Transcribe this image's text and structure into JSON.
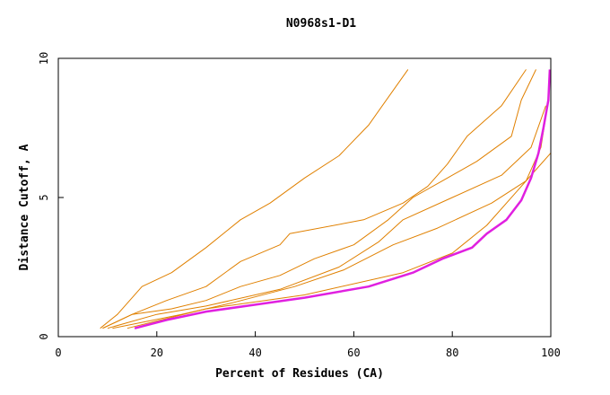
{
  "chart_data": {
    "type": "line",
    "title": "N0968s1-D1",
    "xlabel": "Percent of Residues (CA)",
    "ylabel": "Distance Cutoff, A",
    "xlim": [
      0,
      100
    ],
    "ylim": [
      0,
      10
    ],
    "x_ticks": [
      "0",
      "20",
      "40",
      "60",
      "80",
      "100"
    ],
    "y_ticks": [
      "0",
      "5",
      "10"
    ],
    "grid": false,
    "colors": {
      "background": "#ffffff",
      "frame": "#000000",
      "other_models": "#e08000",
      "highlight": "#e020e0"
    },
    "series": [
      {
        "highlight": false,
        "points": [
          [
            8.5,
            0.3
          ],
          [
            12,
            0.8
          ],
          [
            17,
            1.8
          ],
          [
            23,
            2.3
          ],
          [
            30,
            3.2
          ],
          [
            37,
            4.2
          ],
          [
            43,
            4.8
          ],
          [
            50,
            5.7
          ],
          [
            57,
            6.5
          ],
          [
            63,
            7.6
          ],
          [
            67,
            8.6
          ],
          [
            71,
            9.6
          ]
        ]
      },
      {
        "highlight": false,
        "points": [
          [
            9,
            0.3
          ],
          [
            15,
            0.8
          ],
          [
            22,
            1.3
          ],
          [
            30,
            1.8
          ],
          [
            37,
            2.7
          ],
          [
            45,
            3.3
          ],
          [
            47,
            3.7
          ],
          [
            62,
            4.2
          ],
          [
            70,
            4.8
          ],
          [
            75,
            5.4
          ],
          [
            79,
            6.2
          ],
          [
            83,
            7.2
          ],
          [
            90,
            8.3
          ],
          [
            95,
            9.6
          ]
        ]
      },
      {
        "highlight": false,
        "points": [
          [
            9,
            0.3
          ],
          [
            15,
            0.8
          ],
          [
            23,
            1.0
          ],
          [
            30,
            1.3
          ],
          [
            37,
            1.8
          ],
          [
            45,
            2.2
          ],
          [
            52,
            2.8
          ],
          [
            60,
            3.3
          ],
          [
            67,
            4.2
          ],
          [
            72,
            5.0
          ],
          [
            78,
            5.6
          ],
          [
            85,
            6.3
          ],
          [
            92,
            7.2
          ],
          [
            94,
            8.5
          ],
          [
            97,
            9.6
          ]
        ]
      },
      {
        "highlight": false,
        "points": [
          [
            10,
            0.3
          ],
          [
            20,
            0.8
          ],
          [
            30,
            1.1
          ],
          [
            45,
            1.7
          ],
          [
            57,
            2.5
          ],
          [
            65,
            3.4
          ],
          [
            70,
            4.2
          ],
          [
            80,
            5.0
          ],
          [
            90,
            5.8
          ],
          [
            96,
            6.8
          ],
          [
            99,
            8.3
          ]
        ]
      },
      {
        "highlight": false,
        "points": [
          [
            11,
            0.3
          ],
          [
            25,
            0.8
          ],
          [
            35,
            1.2
          ],
          [
            48,
            1.8
          ],
          [
            58,
            2.4
          ],
          [
            68,
            3.3
          ],
          [
            77,
            3.9
          ],
          [
            88,
            4.8
          ],
          [
            95,
            5.6
          ],
          [
            98,
            6.8
          ],
          [
            99.5,
            8.5
          ]
        ]
      },
      {
        "highlight": false,
        "points": [
          [
            14,
            0.3
          ],
          [
            30,
            1.0
          ],
          [
            50,
            1.5
          ],
          [
            70,
            2.3
          ],
          [
            80,
            3.0
          ],
          [
            87,
            4.0
          ],
          [
            93,
            5.2
          ],
          [
            97,
            6.0
          ],
          [
            100,
            6.6
          ],
          [
            100,
            9.0
          ]
        ]
      },
      {
        "highlight": true,
        "points": [
          [
            15.5,
            0.3
          ],
          [
            22,
            0.6
          ],
          [
            30,
            0.9
          ],
          [
            40,
            1.15
          ],
          [
            50,
            1.4
          ],
          [
            63,
            1.8
          ],
          [
            72,
            2.3
          ],
          [
            78,
            2.8
          ],
          [
            84,
            3.2
          ],
          [
            87,
            3.7
          ],
          [
            91,
            4.2
          ],
          [
            94,
            4.9
          ],
          [
            96,
            5.7
          ],
          [
            97.5,
            6.6
          ],
          [
            98.5,
            7.5
          ],
          [
            99.5,
            8.5
          ],
          [
            99.8,
            9.6
          ]
        ]
      }
    ]
  }
}
